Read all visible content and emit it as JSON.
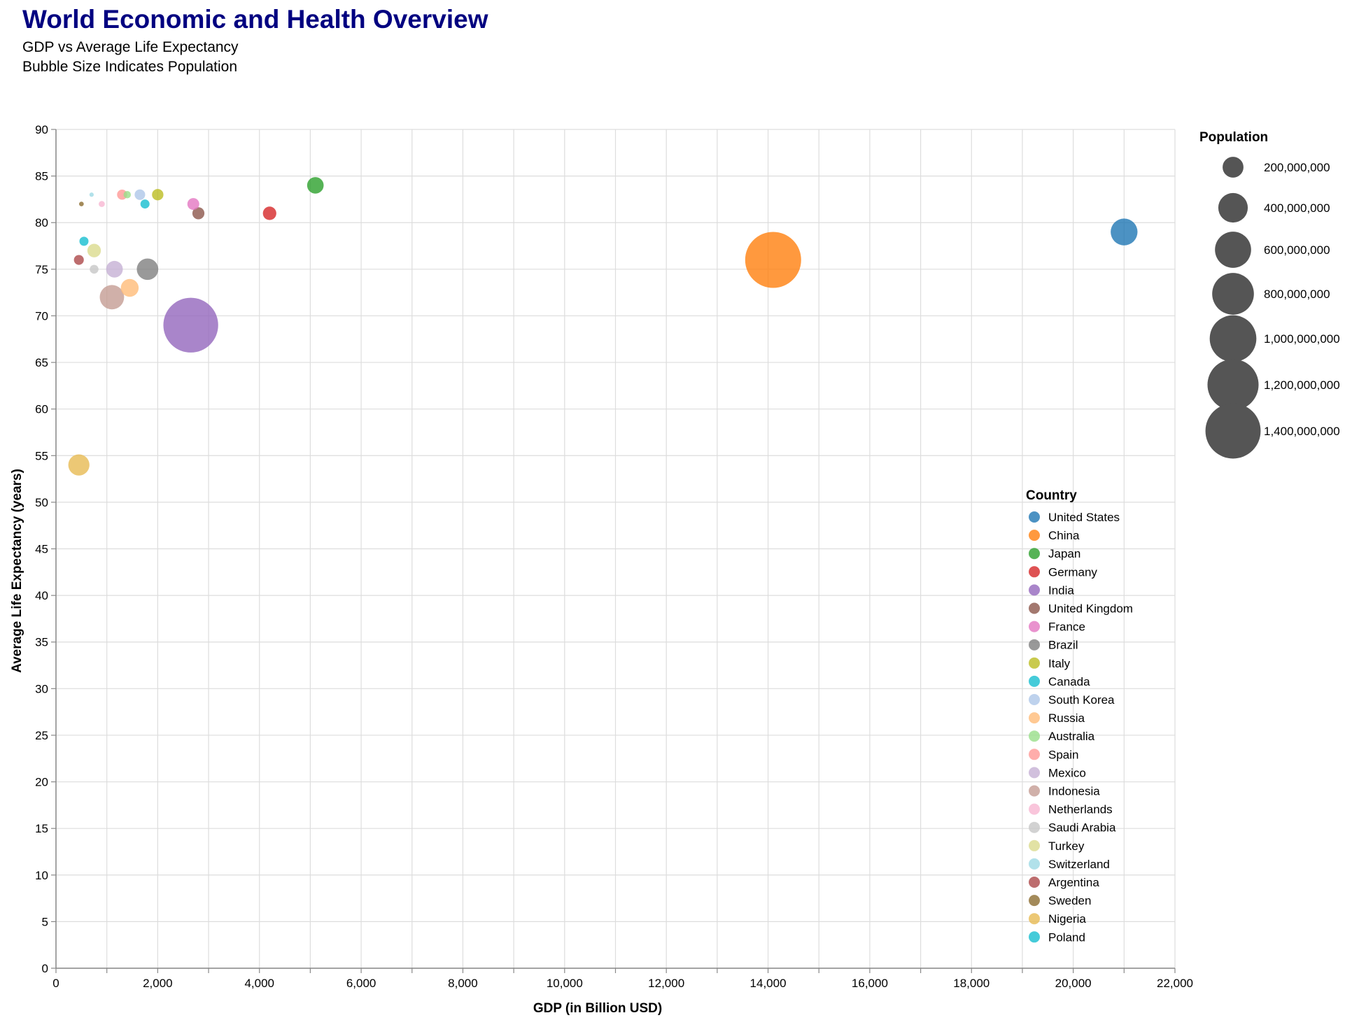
{
  "chart_data": {
    "type": "scatter",
    "title": "World Economic and Health Overview",
    "subtitle": [
      "GDP vs Average Life Expectancy",
      "Bubble Size Indicates Population"
    ],
    "xlabel": "GDP (in Billion USD)",
    "ylabel": "Average Life Expectancy (years)",
    "xlim": [
      0,
      22000
    ],
    "ylim": [
      0,
      90
    ],
    "x_ticks": [
      "0",
      "2,000",
      "4,000",
      "6,000",
      "8,000",
      "10,000",
      "12,000",
      "14,000",
      "16,000",
      "18,000",
      "20,000",
      "22,000"
    ],
    "y_ticks": [
      "0",
      "5",
      "10",
      "15",
      "20",
      "25",
      "30",
      "35",
      "40",
      "45",
      "50",
      "55",
      "60",
      "65",
      "70",
      "75",
      "80",
      "85",
      "90"
    ],
    "grid": true,
    "title_color": "#000080",
    "size_legend": {
      "title": "Population",
      "color": "#555555",
      "entries": [
        {
          "label": "200,000,000",
          "value": 200000000
        },
        {
          "label": "400,000,000",
          "value": 400000000
        },
        {
          "label": "600,000,000",
          "value": 600000000
        },
        {
          "label": "800,000,000",
          "value": 800000000
        },
        {
          "label": "1,000,000,000",
          "value": 1000000000
        },
        {
          "label": "1,200,000,000",
          "value": 1200000000
        },
        {
          "label": "1,400,000,000",
          "value": 1400000000
        }
      ]
    },
    "color_legend": {
      "title": "Country",
      "placement": "bottom-right"
    },
    "series": [
      {
        "name": "United States",
        "color": "#1f77b4",
        "gdp": 21000,
        "life_expectancy": 79,
        "population": 331000000
      },
      {
        "name": "China",
        "color": "#ff7f0e",
        "gdp": 14100,
        "life_expectancy": 76,
        "population": 1440000000
      },
      {
        "name": "Japan",
        "color": "#2ca02c",
        "gdp": 5100,
        "life_expectancy": 84,
        "population": 126000000
      },
      {
        "name": "Germany",
        "color": "#d62728",
        "gdp": 4200,
        "life_expectancy": 81,
        "population": 83000000
      },
      {
        "name": "India",
        "color": "#9467bd",
        "gdp": 2650,
        "life_expectancy": 69,
        "population": 1380000000
      },
      {
        "name": "United Kingdom",
        "color": "#8c564b",
        "gdp": 2800,
        "life_expectancy": 81,
        "population": 67000000
      },
      {
        "name": "France",
        "color": "#e377c2",
        "gdp": 2700,
        "life_expectancy": 82,
        "population": 65000000
      },
      {
        "name": "Brazil",
        "color": "#7f7f7f",
        "gdp": 1800,
        "life_expectancy": 75,
        "population": 212000000
      },
      {
        "name": "Italy",
        "color": "#bcbd22",
        "gdp": 2000,
        "life_expectancy": 83,
        "population": 60000000
      },
      {
        "name": "Canada",
        "color": "#17becf",
        "gdp": 1750,
        "life_expectancy": 82,
        "population": 38000000
      },
      {
        "name": "South Korea",
        "color": "#aec7e8",
        "gdp": 1650,
        "life_expectancy": 83,
        "population": 51000000
      },
      {
        "name": "Russia",
        "color": "#ffbb78",
        "gdp": 1450,
        "life_expectancy": 73,
        "population": 146000000
      },
      {
        "name": "Australia",
        "color": "#98df8a",
        "gdp": 1400,
        "life_expectancy": 83,
        "population": 25000000
      },
      {
        "name": "Spain",
        "color": "#ff9896",
        "gdp": 1300,
        "life_expectancy": 83,
        "population": 47000000
      },
      {
        "name": "Mexico",
        "color": "#c5b0d5",
        "gdp": 1150,
        "life_expectancy": 75,
        "population": 128000000
      },
      {
        "name": "Indonesia",
        "color": "#c49c94",
        "gdp": 1100,
        "life_expectancy": 72,
        "population": 273000000
      },
      {
        "name": "Netherlands",
        "color": "#f7b6d2",
        "gdp": 900,
        "life_expectancy": 82,
        "population": 17000000
      },
      {
        "name": "Saudi Arabia",
        "color": "#c7c7c7",
        "gdp": 750,
        "life_expectancy": 75,
        "population": 35000000
      },
      {
        "name": "Turkey",
        "color": "#dbdb8d",
        "gdp": 750,
        "life_expectancy": 77,
        "population": 84000000
      },
      {
        "name": "Switzerland",
        "color": "#9edae5",
        "gdp": 700,
        "life_expectancy": 83,
        "population": 8600000
      },
      {
        "name": "Argentina",
        "color": "#ad494a",
        "gdp": 450,
        "life_expectancy": 76,
        "population": 45000000
      },
      {
        "name": "Sweden",
        "color": "#8c6d31",
        "gdp": 500,
        "life_expectancy": 82,
        "population": 10000000
      },
      {
        "name": "Nigeria",
        "color": "#e7ba52",
        "gdp": 450,
        "life_expectancy": 54,
        "population": 206000000
      },
      {
        "name": "Poland",
        "color": "#17becf",
        "gdp": 550,
        "life_expectancy": 78,
        "population": 38000000
      }
    ]
  }
}
